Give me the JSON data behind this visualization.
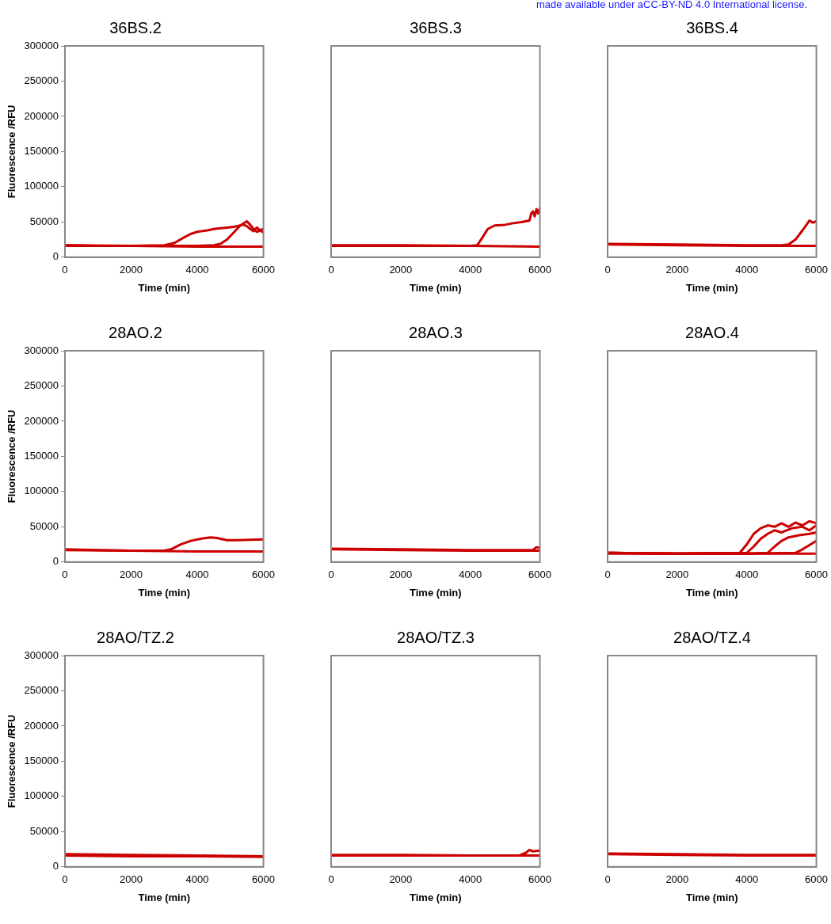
{
  "chart_data": [
    {
      "type": "line",
      "title": "36BS.2",
      "xlabel": "Time (min)",
      "ylabel": "Fluorescence /RFU",
      "xlim": [
        0,
        6000
      ],
      "xticks": [
        0,
        2000,
        4000,
        6000
      ],
      "ylim": [
        0,
        300000
      ],
      "yticks": [
        0,
        50000,
        100000,
        150000,
        200000,
        250000,
        300000
      ],
      "series": [
        {
          "color": "#cc0000",
          "x": [
            0,
            1000,
            2000,
            3000,
            3300,
            3600,
            3800,
            4000,
            4300,
            4500,
            4700,
            4900,
            5100,
            5300,
            5400,
            5500,
            5600,
            5700,
            5800,
            5900,
            6000
          ],
          "values": [
            17000,
            16000,
            16000,
            17000,
            20000,
            28000,
            33000,
            36000,
            38000,
            40000,
            41000,
            42000,
            43000,
            45000,
            46000,
            44000,
            40000,
            37000,
            42000,
            38000,
            40000
          ]
        },
        {
          "color": "#cc0000",
          "x": [
            0,
            2000,
            4000,
            4500,
            4700,
            4900,
            5100,
            5300,
            5500,
            5600,
            5700,
            5800,
            5900,
            6000
          ],
          "values": [
            17000,
            16000,
            16000,
            17000,
            19000,
            25000,
            35000,
            45000,
            51000,
            46000,
            40000,
            36000,
            38000,
            35000
          ]
        },
        {
          "color": "#cc0000",
          "x": [
            0,
            2000,
            4000,
            5000,
            6000
          ],
          "values": [
            16000,
            16000,
            15000,
            15000,
            15000
          ]
        }
      ]
    },
    {
      "type": "line",
      "title": "36BS.3",
      "xlabel": "Time (min)",
      "annotations": [
        "made available under aCC-BY-ND 4.0 International license."
      ],
      "xlim": [
        0,
        6000
      ],
      "xticks": [
        0,
        2000,
        4000,
        6000
      ],
      "ylim": [
        0,
        300000
      ],
      "yticks": [
        0,
        50000,
        100000,
        150000,
        200000,
        250000,
        300000
      ],
      "tick_labels": "x",
      "series": [
        {
          "color": "#cc0000",
          "x": [
            0,
            2000,
            4000,
            4200,
            4350,
            4500,
            4700,
            5000,
            5200,
            5500,
            5700,
            5750,
            5800,
            5850,
            5900,
            5950,
            6000
          ],
          "values": [
            17000,
            17000,
            16000,
            17000,
            28000,
            40000,
            45000,
            46000,
            48000,
            50000,
            52000,
            62000,
            65000,
            58000,
            68000,
            62000,
            70000
          ]
        },
        {
          "color": "#cc0000",
          "x": [
            0,
            2000,
            4000,
            6000
          ],
          "values": [
            16000,
            16000,
            16000,
            15000
          ]
        }
      ]
    },
    {
      "type": "line",
      "title": "36BS.4",
      "xlabel": "Time (min)",
      "xlim": [
        0,
        6000
      ],
      "xticks": [
        0,
        2000,
        4000,
        6000
      ],
      "ylim": [
        0,
        300000
      ],
      "yticks": [
        0,
        50000,
        100000,
        150000,
        200000,
        250000,
        300000
      ],
      "tick_labels": "x",
      "series": [
        {
          "color": "#cc0000",
          "x": [
            0,
            2000,
            4000,
            5000,
            5200,
            5400,
            5600,
            5700,
            5800,
            5900,
            6000
          ],
          "values": [
            19000,
            18000,
            17000,
            17000,
            18000,
            25000,
            38000,
            45000,
            52000,
            49000,
            51000
          ]
        },
        {
          "color": "#cc0000",
          "x": [
            0,
            2000,
            4000,
            6000
          ],
          "values": [
            18000,
            17000,
            16000,
            16000
          ]
        }
      ]
    },
    {
      "type": "line",
      "title": "28AO.2",
      "xlabel": "Time (min)",
      "ylabel": "Fluorescence /RFU",
      "xlim": [
        0,
        6000
      ],
      "xticks": [
        0,
        2000,
        4000,
        6000
      ],
      "ylim": [
        0,
        300000
      ],
      "yticks": [
        0,
        50000,
        100000,
        150000,
        200000,
        250000,
        300000
      ],
      "series": [
        {
          "color": "#cc0000",
          "x": [
            0,
            1000,
            2000,
            3000,
            3200,
            3500,
            3800,
            4100,
            4400,
            4600,
            4900,
            5200,
            6000
          ],
          "values": [
            18000,
            17000,
            16000,
            16000,
            18000,
            25000,
            30000,
            33000,
            35000,
            34000,
            31000,
            31000,
            32000
          ]
        },
        {
          "color": "#cc0000",
          "x": [
            0,
            2000,
            4000,
            6000
          ],
          "values": [
            17000,
            16000,
            15000,
            15000
          ]
        }
      ]
    },
    {
      "type": "line",
      "title": "28AO.3",
      "xlabel": "Time (min)",
      "xlim": [
        0,
        6000
      ],
      "xticks": [
        0,
        2000,
        4000,
        6000
      ],
      "ylim": [
        0,
        300000
      ],
      "yticks": [
        0,
        50000,
        100000,
        150000,
        200000,
        250000,
        300000
      ],
      "tick_labels": "x",
      "series": [
        {
          "color": "#cc0000",
          "x": [
            0,
            2000,
            4000,
            5800,
            5900,
            6000
          ],
          "values": [
            19000,
            18000,
            17000,
            17000,
            21000,
            20000
          ]
        },
        {
          "color": "#cc0000",
          "x": [
            0,
            2000,
            4000,
            6000
          ],
          "values": [
            18000,
            17000,
            16000,
            16000
          ]
        }
      ]
    },
    {
      "type": "line",
      "title": "28AO.4",
      "xlabel": "Time (min)",
      "xlim": [
        0,
        6000
      ],
      "xticks": [
        0,
        2000,
        4000,
        6000
      ],
      "ylim": [
        0,
        300000
      ],
      "yticks": [
        0,
        50000,
        100000,
        150000,
        200000,
        250000,
        300000
      ],
      "tick_labels": "x",
      "series": [
        {
          "color": "#cc0000",
          "x": [
            0,
            2000,
            3800,
            4000,
            4200,
            4400,
            4600,
            4800,
            5000,
            5200,
            5400,
            5600,
            5800,
            6000
          ],
          "values": [
            13000,
            12000,
            13000,
            25000,
            40000,
            48000,
            52000,
            50000,
            55000,
            50000,
            56000,
            52000,
            58000,
            55000
          ]
        },
        {
          "color": "#cc0000",
          "x": [
            0,
            2000,
            4000,
            4200,
            4400,
            4600,
            4800,
            5000,
            5300,
            5600,
            5800,
            6000
          ],
          "values": [
            13000,
            12000,
            13000,
            22000,
            33000,
            40000,
            45000,
            42000,
            48000,
            50000,
            45000,
            52000
          ]
        },
        {
          "color": "#cc0000",
          "x": [
            0,
            2000,
            4000,
            4600,
            4800,
            5000,
            5200,
            5500,
            5800,
            6000
          ],
          "values": [
            13000,
            12000,
            12000,
            13000,
            22000,
            30000,
            35000,
            38000,
            40000,
            42000
          ]
        },
        {
          "color": "#cc0000",
          "x": [
            0,
            2000,
            4000,
            5400,
            5600,
            5800,
            6000
          ],
          "values": [
            13000,
            12000,
            12000,
            13000,
            18000,
            24000,
            30000
          ]
        },
        {
          "color": "#cc0000",
          "x": [
            0,
            2000,
            4000,
            6000
          ],
          "values": [
            12000,
            12000,
            12000,
            12000
          ]
        }
      ]
    },
    {
      "type": "line",
      "title": "28AO/TZ.2",
      "xlabel": "Time (min)",
      "ylabel": "Fluorescence /RFU",
      "xlim": [
        0,
        6000
      ],
      "xticks": [
        0,
        2000,
        4000,
        6000
      ],
      "ylim": [
        0,
        300000
      ],
      "yticks": [
        0,
        50000,
        100000,
        150000,
        200000,
        250000,
        300000
      ],
      "series": [
        {
          "color": "#cc0000",
          "x": [
            0,
            2000,
            4000,
            6000
          ],
          "values": [
            18000,
            17000,
            16000,
            15000
          ]
        },
        {
          "color": "#cc0000",
          "x": [
            0,
            2000,
            4000,
            6000
          ],
          "values": [
            16000,
            15000,
            15000,
            14000
          ]
        }
      ]
    },
    {
      "type": "line",
      "title": "28AO/TZ.3",
      "xlabel": "Time (min)",
      "xlim": [
        0,
        6000
      ],
      "xticks": [
        0,
        2000,
        4000,
        6000
      ],
      "ylim": [
        0,
        300000
      ],
      "yticks": [
        0,
        50000,
        100000,
        150000,
        200000,
        250000,
        300000
      ],
      "tick_labels": "x",
      "series": [
        {
          "color": "#cc0000",
          "x": [
            0,
            2000,
            4000,
            5400,
            5600,
            5700,
            5800,
            6000
          ],
          "values": [
            17000,
            17000,
            16000,
            16000,
            20000,
            24000,
            22000,
            23000
          ]
        },
        {
          "color": "#cc0000",
          "x": [
            0,
            2000,
            4000,
            6000
          ],
          "values": [
            16000,
            16000,
            16000,
            16000
          ]
        }
      ]
    },
    {
      "type": "line",
      "title": "28AO/TZ.4",
      "xlabel": "Time (min)",
      "xlim": [
        0,
        6000
      ],
      "xticks": [
        0,
        2000,
        4000,
        6000
      ],
      "ylim": [
        0,
        300000
      ],
      "yticks": [
        0,
        50000,
        100000,
        150000,
        200000,
        250000,
        300000
      ],
      "tick_labels": "x",
      "series": [
        {
          "color": "#cc0000",
          "x": [
            0,
            2000,
            4000,
            6000
          ],
          "values": [
            19000,
            18000,
            17000,
            17000
          ]
        },
        {
          "color": "#cc0000",
          "x": [
            0,
            2000,
            4000,
            6000
          ],
          "values": [
            18000,
            17000,
            16000,
            16000
          ]
        }
      ]
    }
  ]
}
